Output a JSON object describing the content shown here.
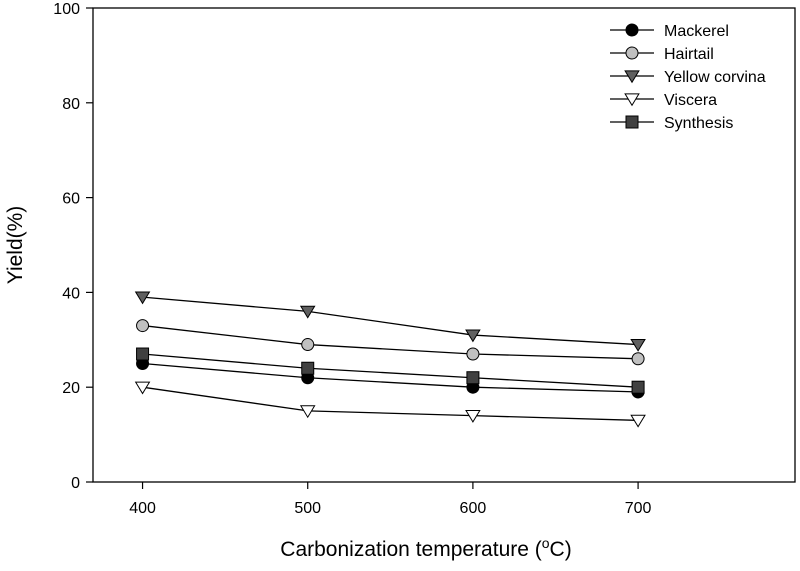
{
  "chart_data": {
    "type": "line",
    "title": "",
    "xlabel": "Carbonization temperature (",
    "xlabel_unit_sup": "o",
    "xlabel_unit_tail": "C)",
    "ylabel": "Yield(%)",
    "x": [
      400,
      500,
      600,
      700
    ],
    "x_ticks": [
      "400",
      "500",
      "600",
      "700"
    ],
    "y_ticks": [
      "0",
      "20",
      "40",
      "60",
      "80",
      "100"
    ],
    "ylim": [
      0,
      100
    ],
    "xlim": [
      370,
      795
    ],
    "grid": false,
    "legend_position": "top-right",
    "series": [
      {
        "name": "Mackerel",
        "marker": "circle",
        "fill": "#000000",
        "values": [
          25,
          22,
          20,
          19
        ]
      },
      {
        "name": "Hairtail",
        "marker": "circle",
        "fill": "#c0c0c0",
        "values": [
          33,
          29,
          27,
          26
        ]
      },
      {
        "name": "Yellow corvina",
        "marker": "triangle-down",
        "fill": "#606060",
        "values": [
          39,
          36,
          31,
          29
        ]
      },
      {
        "name": "Viscera",
        "marker": "triangle-down",
        "fill": "#ffffff",
        "values": [
          20,
          15,
          14,
          13
        ]
      },
      {
        "name": "Synthesis",
        "marker": "square",
        "fill": "#404040",
        "values": [
          27,
          24,
          22,
          20
        ]
      }
    ]
  }
}
